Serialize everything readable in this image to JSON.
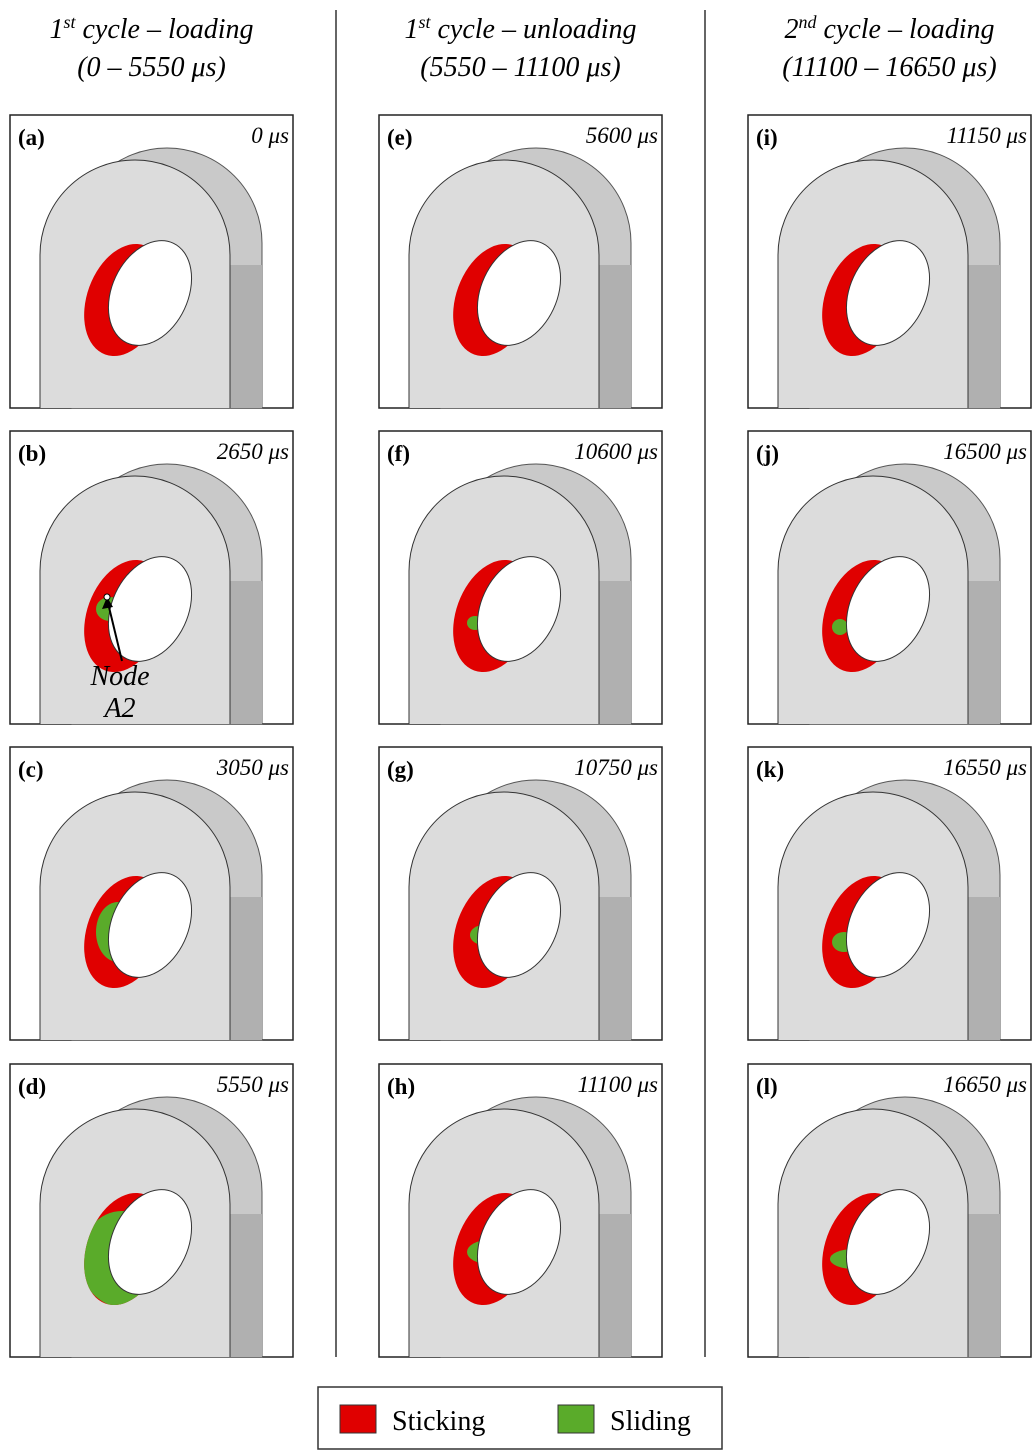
{
  "columns": [
    {
      "title": {
        "ordinal": "1",
        "sup": "st",
        "rest": " cycle – loading"
      },
      "range": "(0 – 5550 μs)",
      "panels": [
        {
          "label": "(a)",
          "time": "0 μs"
        },
        {
          "label": "(b)",
          "time": "2650 μs",
          "annotation": [
            "Node",
            "A2"
          ]
        },
        {
          "label": "(c)",
          "time": "3050 μs"
        },
        {
          "label": "(d)",
          "time": "5550 μs"
        }
      ]
    },
    {
      "title": {
        "ordinal": "1",
        "sup": "st",
        "rest": " cycle – unloading"
      },
      "range": "(5550 – 11100 μs)",
      "panels": [
        {
          "label": "(e)",
          "time": "5600 μs"
        },
        {
          "label": "(f)",
          "time": "10600 μs"
        },
        {
          "label": "(g)",
          "time": "10750 μs"
        },
        {
          "label": "(h)",
          "time": "11100 μs"
        }
      ]
    },
    {
      "title": {
        "ordinal": "2",
        "sup": "nd",
        "rest": " cycle – loading"
      },
      "range": "(11100 – 16650 μs)",
      "panels": [
        {
          "label": "(i)",
          "time": "11150 μs"
        },
        {
          "label": "(j)",
          "time": "16500 μs"
        },
        {
          "label": "(k)",
          "time": "16550 μs"
        },
        {
          "label": "(l)",
          "time": "16650 μs"
        }
      ]
    }
  ],
  "legend": [
    {
      "label": "Sticking",
      "color": "#e00000"
    },
    {
      "label": "Sliding",
      "color": "#5aab2a"
    }
  ]
}
